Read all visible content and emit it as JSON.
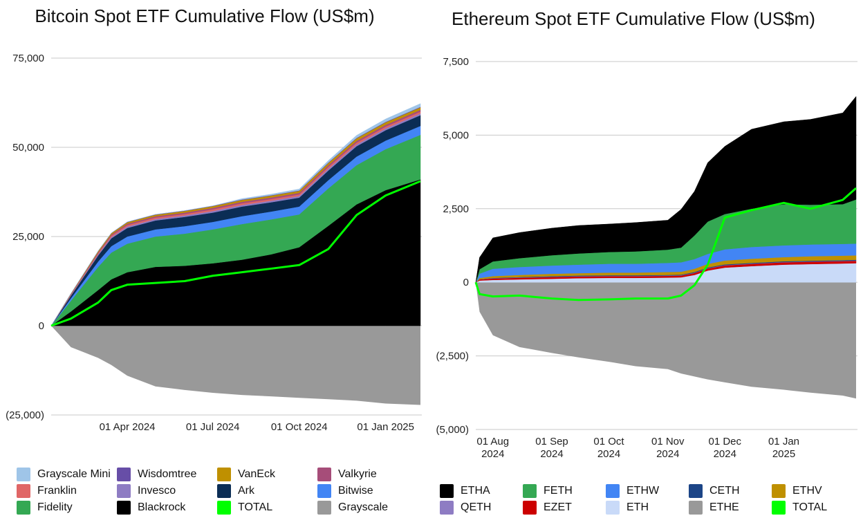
{
  "chart_data": [
    {
      "type": "area",
      "title": "Bitcoin Spot ETF Cumulative Flow (US$m)",
      "xlabel": "",
      "ylabel": "",
      "stacked": true,
      "grid": "horizontal",
      "legend_position": "bottom",
      "x": [
        "2024-01-11",
        "2024-02-01",
        "2024-03-01",
        "2024-03-15",
        "2024-04-01",
        "2024-05-01",
        "2024-06-01",
        "2024-07-01",
        "2024-08-01",
        "2024-09-01",
        "2024-10-01",
        "2024-11-01",
        "2024-12-01",
        "2025-01-01",
        "2025-02-07"
      ],
      "x_tick_labels": [
        {
          "date": "2024-04-01",
          "label": "01 Apr 2024"
        },
        {
          "date": "2024-07-01",
          "label": "01 Jul 2024"
        },
        {
          "date": "2024-10-01",
          "label": "01 Oct 2024"
        },
        {
          "date": "2025-01-01",
          "label": "01 Jan 2025"
        }
      ],
      "xlim": [
        "2024-01-11",
        "2025-02-07"
      ],
      "ylim": [
        -25000,
        75000
      ],
      "y_ticks": [
        -25000,
        0,
        25000,
        50000,
        75000
      ],
      "y_tick_labels": [
        "(25,000)",
        "0",
        "25,000",
        "50,000",
        "75,000"
      ],
      "series": [
        {
          "name": "Blackrock",
          "color": "#000000",
          "values": [
            0,
            4000,
            10000,
            13000,
            15000,
            16500,
            16800,
            17500,
            18500,
            20000,
            22000,
            28000,
            34000,
            38000,
            41000
          ]
        },
        {
          "name": "Fidelity",
          "color": "#34a853",
          "values": [
            0,
            3000,
            6500,
            7500,
            8000,
            8500,
            9000,
            9500,
            10000,
            9800,
            9200,
            10500,
            11000,
            11500,
            12500
          ]
        },
        {
          "name": "Bitwise",
          "color": "#4285f4",
          "values": [
            0,
            700,
            1500,
            1800,
            2000,
            2000,
            2100,
            2100,
            2200,
            2200,
            2200,
            2300,
            2400,
            2400,
            2500
          ]
        },
        {
          "name": "Ark",
          "color": "#0b2d55",
          "values": [
            0,
            700,
            1700,
            2200,
            2400,
            2500,
            2600,
            2600,
            2700,
            2600,
            2500,
            2700,
            2900,
            2900,
            3000
          ]
        },
        {
          "name": "Invesco",
          "color": "#8e7cc3",
          "values": [
            0,
            150,
            300,
            350,
            400,
            400,
            400,
            450,
            450,
            450,
            450,
            500,
            500,
            500,
            500
          ]
        },
        {
          "name": "Franklin",
          "color": "#e06666",
          "values": [
            0,
            150,
            300,
            350,
            400,
            400,
            400,
            450,
            450,
            450,
            450,
            500,
            500,
            500,
            500
          ]
        },
        {
          "name": "Valkyrie",
          "color": "#a64d79",
          "values": [
            0,
            150,
            300,
            350,
            400,
            400,
            400,
            450,
            450,
            450,
            450,
            500,
            500,
            500,
            500
          ]
        },
        {
          "name": "VanEck",
          "color": "#bf9000",
          "values": [
            0,
            150,
            300,
            350,
            400,
            400,
            450,
            450,
            500,
            500,
            550,
            600,
            700,
            700,
            700
          ]
        },
        {
          "name": "Wisdomtree",
          "color": "#674ea7",
          "values": [
            0,
            30,
            60,
            80,
            100,
            100,
            100,
            100,
            120,
            120,
            120,
            150,
            150,
            150,
            150
          ]
        },
        {
          "name": "Grayscale Mini",
          "color": "#9fc5e8",
          "values": [
            0,
            0,
            0,
            0,
            0,
            0,
            0,
            0,
            250,
            300,
            400,
            550,
            700,
            800,
            900
          ]
        },
        {
          "name": "Grayscale",
          "color": "#999999",
          "values": [
            0,
            -6000,
            -9000,
            -11000,
            -14000,
            -17000,
            -18000,
            -18800,
            -19400,
            -19800,
            -20200,
            -20600,
            -21000,
            -21800,
            -22200
          ]
        },
        {
          "name": "TOTAL",
          "color": "#00ff00",
          "values": [
            0,
            2000,
            6500,
            10000,
            11500,
            12000,
            12500,
            14000,
            15000,
            16000,
            17000,
            21500,
            31000,
            36500,
            40500
          ]
        }
      ]
    },
    {
      "type": "area",
      "title": "Ethereum Spot ETF Cumulative Flow (US$m)",
      "xlabel": "",
      "ylabel": "",
      "stacked": true,
      "grid": "horizontal",
      "legend_position": "bottom",
      "x": [
        "2024-07-23",
        "2024-07-25",
        "2024-08-01",
        "2024-08-15",
        "2024-09-01",
        "2024-09-15",
        "2024-10-01",
        "2024-10-15",
        "2024-11-01",
        "2024-11-08",
        "2024-11-15",
        "2024-11-22",
        "2024-12-01",
        "2024-12-15",
        "2025-01-01",
        "2025-01-15",
        "2025-02-01",
        "2025-02-08"
      ],
      "x_tick_labels": [
        {
          "date": "2024-08-01",
          "label": "01 Aug 2024"
        },
        {
          "date": "2024-09-01",
          "label": "01 Sep 2024"
        },
        {
          "date": "2024-10-01",
          "label": "01 Oct 2024"
        },
        {
          "date": "2024-11-01",
          "label": "01 Nov 2024"
        },
        {
          "date": "2024-12-01",
          "label": "01 Dec 2024"
        },
        {
          "date": "2025-01-01",
          "label": "01 Jan 2025"
        }
      ],
      "xlim": [
        "2024-07-23",
        "2025-02-08"
      ],
      "ylim": [
        -5000,
        7500
      ],
      "y_ticks": [
        -5000,
        -2500,
        0,
        2500,
        5000,
        7500
      ],
      "y_tick_labels": [
        "(5,000)",
        "(2,500)",
        "0",
        "2,500",
        "5,000",
        "7,500"
      ],
      "series": [
        {
          "name": "ETH",
          "color": "#c9daf8",
          "values": [
            0,
            60,
            80,
            100,
            120,
            140,
            150,
            150,
            160,
            170,
            250,
            400,
            500,
            550,
            600,
            620,
            640,
            650
          ]
        },
        {
          "name": "EZET",
          "color": "#cc0000",
          "values": [
            0,
            40,
            50,
            55,
            60,
            60,
            60,
            60,
            60,
            60,
            65,
            70,
            75,
            75,
            80,
            80,
            80,
            80
          ]
        },
        {
          "name": "QETH",
          "color": "#8e7cc3",
          "values": [
            0,
            5,
            10,
            10,
            10,
            10,
            10,
            10,
            10,
            10,
            10,
            10,
            10,
            10,
            10,
            10,
            10,
            10
          ]
        },
        {
          "name": "CETH",
          "color": "#1c4587",
          "values": [
            0,
            0,
            10,
            15,
            20,
            20,
            20,
            20,
            20,
            20,
            25,
            25,
            25,
            25,
            25,
            25,
            25,
            25
          ]
        },
        {
          "name": "ETHV",
          "color": "#bf9000",
          "values": [
            0,
            40,
            60,
            70,
            80,
            80,
            90,
            90,
            100,
            100,
            110,
            120,
            130,
            140,
            140,
            150,
            150,
            150
          ]
        },
        {
          "name": "ETHW",
          "color": "#4285f4",
          "values": [
            0,
            150,
            250,
            270,
            280,
            290,
            300,
            300,
            310,
            320,
            330,
            340,
            380,
            400,
            400,
            400,
            400,
            400
          ]
        },
        {
          "name": "FETH",
          "color": "#34a853",
          "values": [
            0,
            150,
            250,
            300,
            350,
            380,
            400,
            420,
            450,
            500,
            800,
            1100,
            1200,
            1300,
            1400,
            1350,
            1350,
            1500
          ]
        },
        {
          "name": "ETHA",
          "color": "#000000",
          "values": [
            0,
            400,
            800,
            870,
            920,
            950,
            950,
            980,
            1000,
            1300,
            1500,
            2000,
            2300,
            2700,
            2800,
            2900,
            3100,
            3500
          ]
        },
        {
          "name": "ETHE",
          "color": "#999999",
          "values": [
            0,
            -1000,
            -1800,
            -2200,
            -2400,
            -2550,
            -2700,
            -2850,
            -2950,
            -3100,
            -3200,
            -3300,
            -3400,
            -3550,
            -3650,
            -3750,
            -3850,
            -3950
          ]
        },
        {
          "name": "TOTAL",
          "color": "#00ff00",
          "values": [
            0,
            -400,
            -480,
            -450,
            -550,
            -600,
            -580,
            -550,
            -550,
            -450,
            -100,
            600,
            2200,
            2450,
            2700,
            2500,
            2800,
            3200
          ]
        }
      ]
    }
  ]
}
